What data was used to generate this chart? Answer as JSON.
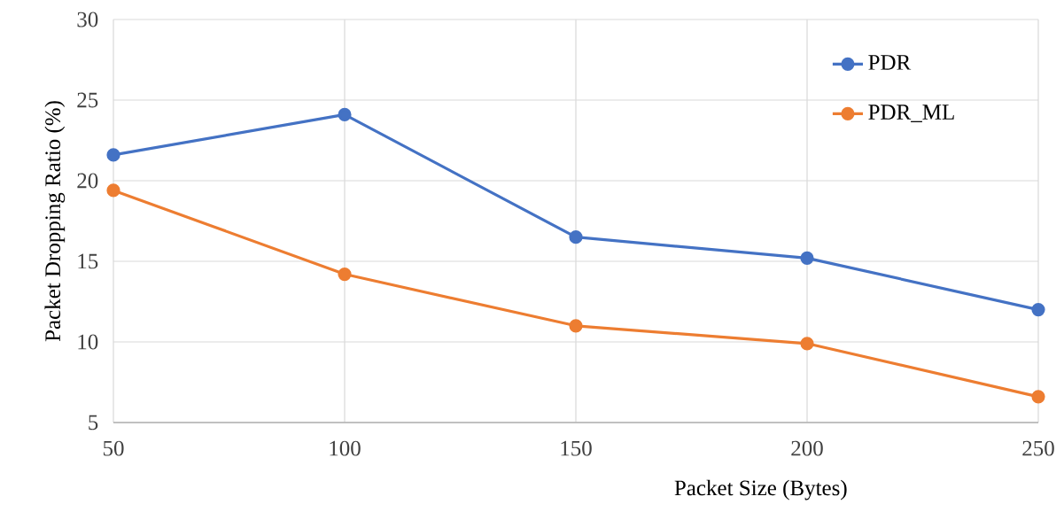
{
  "chart_data": {
    "type": "line",
    "xlabel": "Packet Size (Bytes)",
    "ylabel": "Packet Dropping Ratio (%)",
    "x": [
      50,
      100,
      150,
      200,
      250
    ],
    "series": [
      {
        "name": "PDR",
        "color": "#4472c4",
        "values": [
          21.6,
          24.1,
          16.5,
          15.2,
          12.0
        ]
      },
      {
        "name": "PDR_ML",
        "color": "#ed7d31",
        "values": [
          19.4,
          14.2,
          11.0,
          9.9,
          6.6
        ]
      }
    ],
    "xlim": [
      50,
      250
    ],
    "xticks": [
      50,
      100,
      150,
      200,
      250
    ],
    "ylim": [
      5,
      30
    ],
    "yticks": [
      5,
      10,
      15,
      20,
      25,
      30
    ],
    "grid": true,
    "legend": "top right",
    "marker": "circle",
    "line_style": "solid"
  }
}
